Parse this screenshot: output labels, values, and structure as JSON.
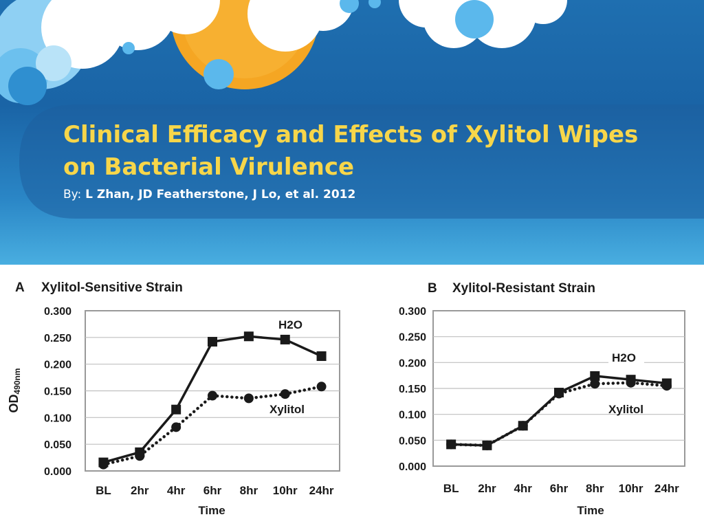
{
  "slide": {
    "title": "Clinical Efficacy and Effects of Xylitol Wipes on Bacterial Virulence",
    "byline_prefix": "By:",
    "byline_authors": "L Zhan, JD Featherstone, J Lo, et al. 2012",
    "colors": {
      "title": "#f7d64a",
      "background": "#1f6fb0",
      "sun": "#f5a623",
      "cloud": "#ffffff",
      "bubble": "#5bb8ec"
    }
  },
  "chart_data": [
    {
      "type": "line",
      "panel": "A",
      "title": "Xylitol-Sensitive Strain",
      "xlabel": "Time",
      "ylabel": "OD",
      "ylabel_sub": "490nm",
      "categories": [
        "BL",
        "2hr",
        "4hr",
        "6hr",
        "8hr",
        "10hr",
        "24hr"
      ],
      "ylim": [
        0,
        0.3
      ],
      "yticks": [
        "0.000",
        "0.050",
        "0.100",
        "0.150",
        "0.200",
        "0.250",
        "0.300"
      ],
      "grid": true,
      "series": [
        {
          "name": "H2O",
          "values": [
            0.016,
            0.035,
            0.115,
            0.242,
            0.252,
            0.246,
            0.215
          ],
          "style": "solid",
          "marker": "square"
        },
        {
          "name": "Xylitol",
          "values": [
            0.012,
            0.028,
            0.082,
            0.141,
            0.136,
            0.144,
            0.158
          ],
          "style": "dotted",
          "marker": "circle"
        }
      ]
    },
    {
      "type": "line",
      "panel": "B",
      "title": "Xylitol-Resistant Strain",
      "xlabel": "Time",
      "categories": [
        "BL",
        "2hr",
        "4hr",
        "6hr",
        "8hr",
        "10hr",
        "24hr"
      ],
      "ylim": [
        0,
        0.3
      ],
      "yticks": [
        "0.000",
        "0.050",
        "0.100",
        "0.150",
        "0.200",
        "0.250",
        "0.300"
      ],
      "grid": true,
      "series": [
        {
          "name": "H2O",
          "values": [
            0.042,
            0.04,
            0.078,
            0.142,
            0.174,
            0.167,
            0.16
          ],
          "style": "solid",
          "marker": "square"
        },
        {
          "name": "Xylitol",
          "values": [
            0.042,
            0.04,
            0.078,
            0.14,
            0.159,
            0.161,
            0.155
          ],
          "style": "dotted",
          "marker": "circle"
        }
      ]
    }
  ]
}
